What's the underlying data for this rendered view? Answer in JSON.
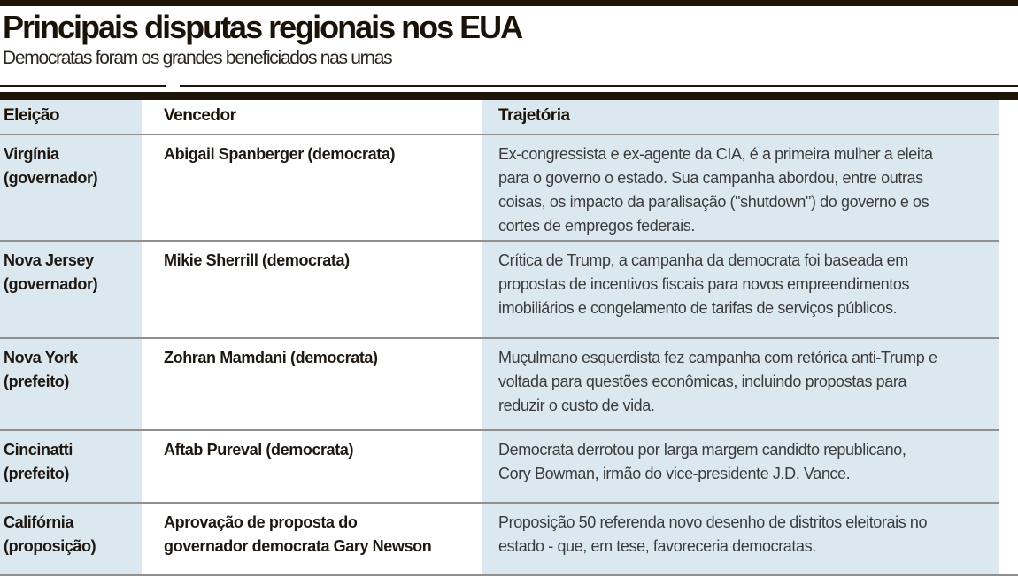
{
  "chart_data": {
    "type": "table",
    "title": "Principais disputas regionais nos EUA",
    "subtitle": "Democratas foram os grandes beneficiados nas urnas",
    "columns": {
      "eleicao": "Eleição",
      "vencedor": "Vencedor",
      "trajetoria": "Trajetória"
    },
    "rows": [
      {
        "eleicao": [
          "Virgínia",
          "(governador)"
        ],
        "vencedor": [
          "Abigail Spanberger (democrata)"
        ],
        "trajetoria": [
          "Ex-congressista e ex-agente da CIA, é a primeira mulher a eleita",
          "para o governo  o estado. Sua campanha abordou, entre outras",
          "coisas, os impacto da paralisação (\"shutdown\") do governo e os",
          "cortes de empregos federais."
        ]
      },
      {
        "eleicao": [
          "Nova Jersey",
          "(governador)"
        ],
        "vencedor": [
          "Mikie Sherrill (democrata)"
        ],
        "trajetoria": [
          "Crítica de Trump, a campanha da democrata foi baseada em",
          "propostas de incentivos fiscais para novos empreendimentos",
          "imobiliários e congelamento de tarifas de serviços públicos."
        ]
      },
      {
        "eleicao": [
          "Nova York",
          "(prefeito)"
        ],
        "vencedor": [
          "Zohran Mamdani (democrata)"
        ],
        "trajetoria": [
          "Muçulmano esquerdista fez campanha com retórica anti-Trump e",
          "voltada para questões econômicas, incluindo propostas para",
          "reduzir o custo de vida."
        ]
      },
      {
        "eleicao": [
          "Cincinatti",
          "(prefeito)"
        ],
        "vencedor": [
          "Aftab Pureval (democrata)"
        ],
        "trajetoria": [
          "Democrata derrotou por larga margem candidto republicano,",
          "Cory Bowman, irmão do vice-presidente J.D. Vance."
        ]
      },
      {
        "eleicao": [
          "Califórnia",
          "(proposição)"
        ],
        "vencedor": [
          "Aprovação de proposta do",
          "governador democrata Gary Newson"
        ],
        "trajetoria": [
          "Proposição 50 referenda novo desenho de distritos eleitorais no",
          "estado - que, em tese, favoreceria democratas."
        ]
      }
    ]
  },
  "colors": {
    "column_fill_blue": "#dce8ef",
    "rule_black": "#1e1408",
    "divider_gray": "#8f8f8f",
    "heading_text": "#1b1207",
    "body_text": "#3b3b3b"
  }
}
